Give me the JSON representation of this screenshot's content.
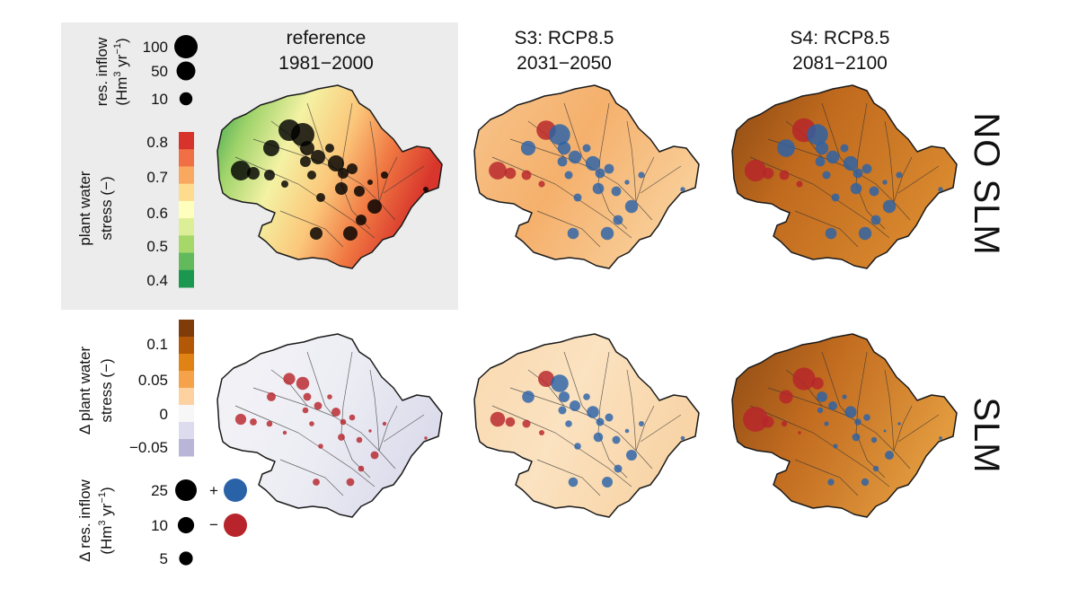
{
  "columns": [
    {
      "line1": "reference",
      "line2": "1981−2000"
    },
    {
      "line1": "S3: RCP8.5",
      "line2": "2031−2050"
    },
    {
      "line1": "S4: RCP8.5",
      "line2": "2081−2100"
    }
  ],
  "rows": [
    {
      "label": "NO SLM"
    },
    {
      "label": "SLM"
    }
  ],
  "legends": {
    "inflow": {
      "title_line1": "res. inflow",
      "title_line2_a": "(Hm",
      "title_line2_sup1": "3",
      "title_line2_b": " yr",
      "title_line2_sup2": "−1",
      "title_line2_c": ")",
      "sizes": [
        {
          "label": "100",
          "value": 100
        },
        {
          "label": "50",
          "value": 50
        },
        {
          "label": "10",
          "value": 10
        }
      ]
    },
    "stress": {
      "title_line1": "plant water",
      "title_line2": "stress (−)",
      "ticks": [
        "0.8",
        "0.7",
        "0.6",
        "0.5",
        "0.4"
      ],
      "colors": [
        "#d7322b",
        "#f06f45",
        "#f9a95f",
        "#fddc8d",
        "#ffffbd",
        "#dcef97",
        "#a6d769",
        "#62ba5d",
        "#1a9850"
      ]
    },
    "delta_stress": {
      "title_line1": "Δ plant water",
      "title_line2": "stress (−)",
      "ticks": [
        "0.1",
        "0.05",
        "0",
        "−0.05"
      ],
      "colors": [
        "#7f3b08",
        "#b35806",
        "#e08214",
        "#f5a24b",
        "#fdd1a0",
        "#f7f7f7",
        "#dcdcee",
        "#b8b5d8"
      ]
    },
    "delta_inflow": {
      "title_line1": "Δ res. inflow",
      "title_line2_a": "(Hm",
      "title_line2_sup1": "3",
      "title_line2_b": " yr",
      "title_line2_sup2": "−1",
      "title_line2_c": ")",
      "sizes": [
        {
          "label": "25",
          "value": 25
        },
        {
          "label": "10",
          "value": 10
        },
        {
          "label": "5",
          "value": 5
        }
      ],
      "plus_label": "+",
      "minus_label": "−",
      "plus_color": "#2a62a8",
      "minus_color": "#b7242b"
    }
  },
  "colors": {
    "reservoir_absolute": "#000000",
    "reservoir_increase": "#2a62a8",
    "reservoir_decrease": "#b7242b",
    "legend_panel_bg": "#ececec",
    "catchment_outline": "#1a1a1a",
    "rivers": "#333333"
  }
}
